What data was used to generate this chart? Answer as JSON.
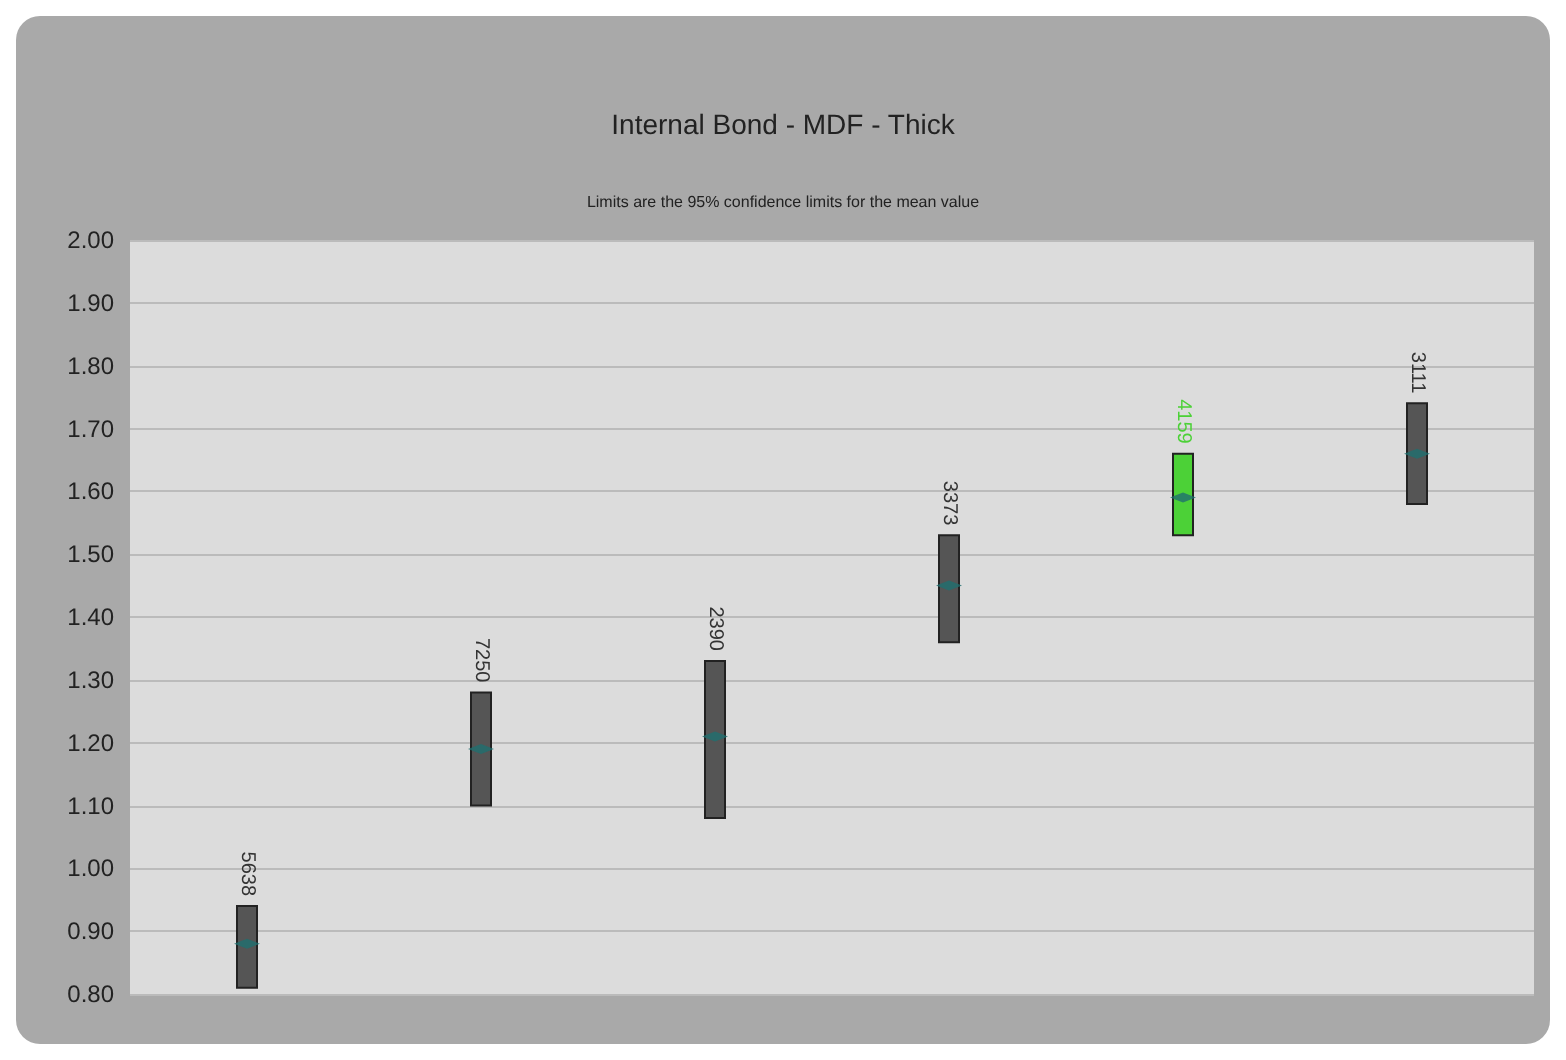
{
  "chart_data": {
    "type": "bar",
    "title": "Internal Bond - MDF - Thick",
    "subtitle": "Limits are the 95% confidence limits for the mean value",
    "categories": [
      "5638",
      "7250",
      "2390",
      "3373",
      "4159",
      "3111"
    ],
    "series": [
      {
        "base": [
          0.81,
          1.1,
          1.08,
          1.36,
          1.53,
          1.58
        ],
        "values": [
          0.13,
          0.18,
          0.25,
          0.17,
          0.13,
          0.16
        ],
        "colors": [
          "#555555",
          "#555555",
          "#555555",
          "#555555",
          "#4cd137",
          "#555555"
        ]
      },
      {
        "type": "scatter",
        "marker": "diamond",
        "color": "#1f6f6f",
        "values": [
          0.88,
          1.19,
          1.21,
          1.45,
          1.59,
          1.66
        ]
      }
    ],
    "ylim": [
      0.8,
      2.0
    ],
    "yticks": [
      {
        "value": 0.8,
        "label": "0.80"
      },
      {
        "value": 0.9,
        "label": "0.90"
      },
      {
        "value": 1.0,
        "label": "1.00"
      },
      {
        "value": 1.1,
        "label": "1.10"
      },
      {
        "value": 1.2,
        "label": "1.20"
      },
      {
        "value": 1.3,
        "label": "1.30"
      },
      {
        "value": 1.4,
        "label": "1.40"
      },
      {
        "value": 1.5,
        "label": "1.50"
      },
      {
        "value": 1.6,
        "label": "1.60"
      },
      {
        "value": 1.7,
        "label": "1.70"
      },
      {
        "value": 1.8,
        "label": "1.80"
      },
      {
        "value": 1.9,
        "label": "1.90"
      },
      {
        "value": 2.0,
        "label": "2.00"
      }
    ],
    "grid": "y"
  }
}
